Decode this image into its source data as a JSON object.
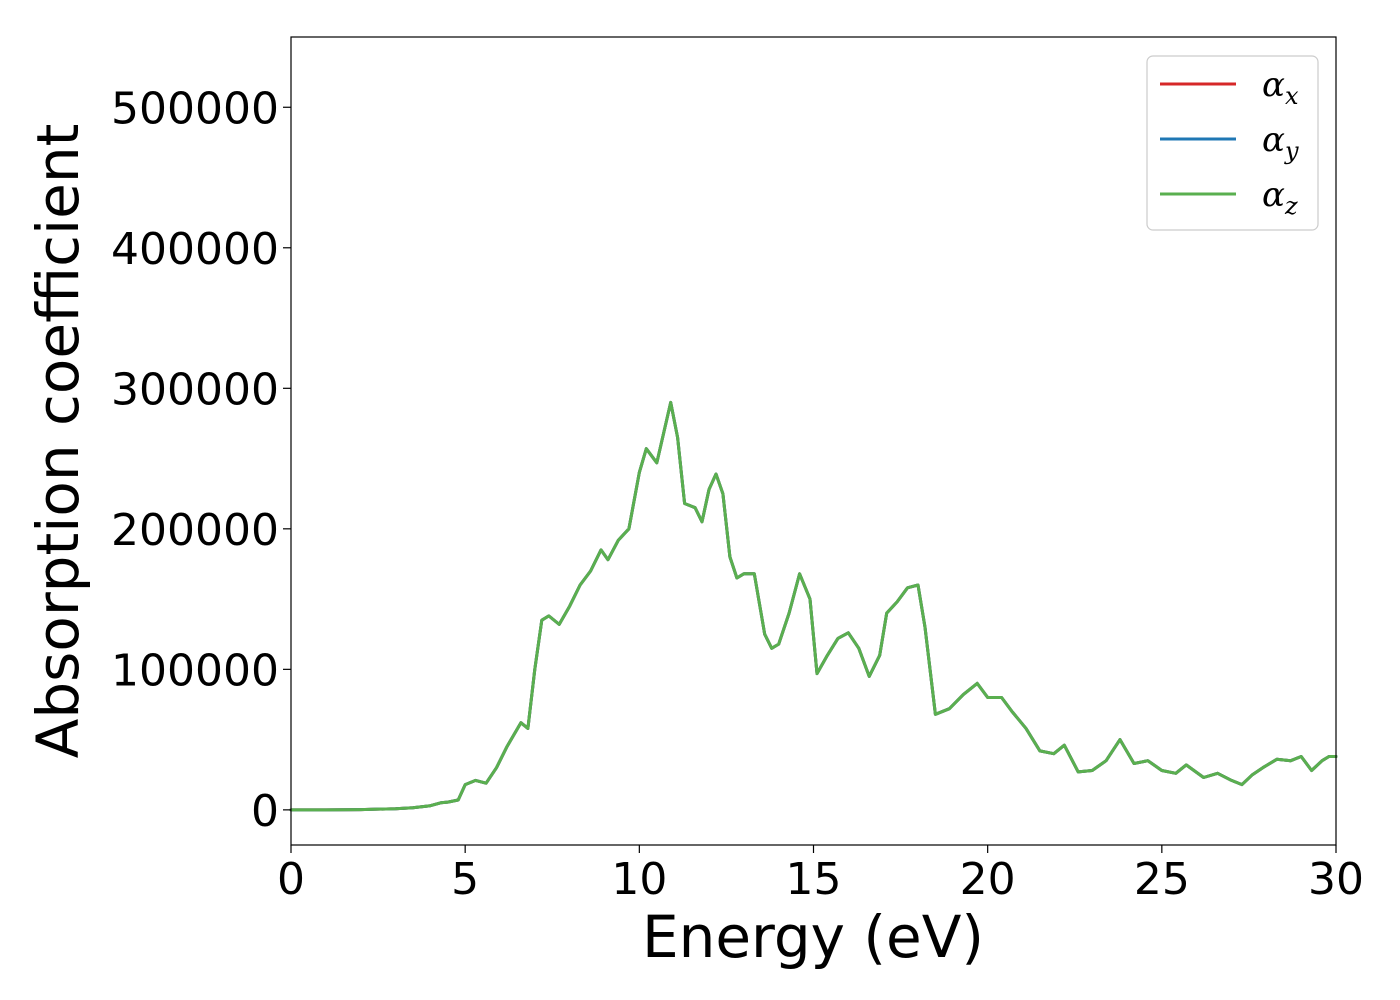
{
  "chart_data": {
    "type": "line",
    "xlabel": "Energy (eV)",
    "ylabel": "Absorption coefficient",
    "xlim": [
      0,
      30
    ],
    "ylim": [
      -25000,
      550000
    ],
    "xticks": [
      "0",
      "5",
      "10",
      "15",
      "20",
      "25",
      "30"
    ],
    "yticks": [
      "0",
      "100000",
      "200000",
      "300000",
      "400000",
      "500000"
    ],
    "grid": false,
    "legend_position": "top-right",
    "series": [
      {
        "name": "α_x",
        "legend_base": "α",
        "legend_sub": "x",
        "color": "#d62728",
        "x": [
          0,
          1,
          2,
          3,
          3.5,
          4,
          4.3,
          4.5,
          4.8,
          5.0,
          5.3,
          5.6,
          5.9,
          6.2,
          6.6,
          6.8,
          7.0,
          7.2,
          7.4,
          7.7,
          8.0,
          8.3,
          8.6,
          8.9,
          9.1,
          9.4,
          9.7,
          10.0,
          10.2,
          10.5,
          10.9,
          11.1,
          11.3,
          11.6,
          11.8,
          12.0,
          12.2,
          12.4,
          12.6,
          12.8,
          13.0,
          13.3,
          13.6,
          13.8,
          14.0,
          14.3,
          14.6,
          14.9,
          15.1,
          15.4,
          15.7,
          16.0,
          16.3,
          16.6,
          16.9,
          17.1,
          17.4,
          17.7,
          18.0,
          18.2,
          18.5,
          18.9,
          19.3,
          19.7,
          20.0,
          20.4,
          20.7,
          21.1,
          21.5,
          21.9,
          22.2,
          22.6,
          23.0,
          23.4,
          23.8,
          24.2,
          24.6,
          25.0,
          25.4,
          25.7,
          26.2,
          26.6,
          27.0,
          27.3,
          27.6,
          27.9,
          28.3,
          28.7,
          29.0,
          29.3,
          29.6,
          29.8,
          30.0
        ],
        "y": [
          0,
          0,
          200,
          800,
          1500,
          3000,
          5000,
          5500,
          7000,
          18000,
          21000,
          19000,
          30000,
          45000,
          62000,
          58000,
          100000,
          135000,
          138000,
          132000,
          145000,
          160000,
          170000,
          185000,
          178000,
          192000,
          200000,
          240000,
          257000,
          247000,
          290000,
          265000,
          218000,
          215000,
          205000,
          228000,
          239000,
          225000,
          180000,
          165000,
          168000,
          168000,
          125000,
          115000,
          118000,
          140000,
          168000,
          150000,
          97000,
          110000,
          122000,
          126000,
          115000,
          95000,
          110000,
          140000,
          148000,
          158000,
          160000,
          130000,
          68000,
          72000,
          82000,
          90000,
          80000,
          80000,
          70000,
          58000,
          42000,
          40000,
          46000,
          27000,
          28000,
          35000,
          50000,
          33000,
          35000,
          28000,
          26000,
          32000,
          23000,
          26000,
          21000,
          18000,
          25000,
          30000,
          36000,
          35000,
          38000,
          28000,
          35000,
          38000,
          38000
        ]
      },
      {
        "name": "α_y",
        "legend_base": "α",
        "legend_sub": "y",
        "color": "#1f77b4",
        "x": [
          0,
          1,
          2,
          3,
          3.5,
          4,
          4.3,
          4.5,
          4.8,
          5.0,
          5.3,
          5.6,
          5.9,
          6.2,
          6.6,
          6.8,
          7.0,
          7.2,
          7.4,
          7.7,
          8.0,
          8.3,
          8.6,
          8.9,
          9.1,
          9.4,
          9.7,
          10.0,
          10.2,
          10.5,
          10.9,
          11.1,
          11.3,
          11.6,
          11.8,
          12.0,
          12.2,
          12.4,
          12.6,
          12.8,
          13.0,
          13.3,
          13.6,
          13.8,
          14.0,
          14.3,
          14.6,
          14.9,
          15.1,
          15.4,
          15.7,
          16.0,
          16.3,
          16.6,
          16.9,
          17.1,
          17.4,
          17.7,
          18.0,
          18.2,
          18.5,
          18.9,
          19.3,
          19.7,
          20.0,
          20.4,
          20.7,
          21.1,
          21.5,
          21.9,
          22.2,
          22.6,
          23.0,
          23.4,
          23.8,
          24.2,
          24.6,
          25.0,
          25.4,
          25.7,
          26.2,
          26.6,
          27.0,
          27.3,
          27.6,
          27.9,
          28.3,
          28.7,
          29.0,
          29.3,
          29.6,
          29.8,
          30.0
        ],
        "y": [
          0,
          0,
          200,
          800,
          1500,
          3000,
          5000,
          5500,
          7000,
          18000,
          21000,
          19000,
          30000,
          45000,
          62000,
          58000,
          100000,
          135000,
          138000,
          132000,
          145000,
          160000,
          170000,
          185000,
          178000,
          192000,
          200000,
          240000,
          257000,
          247000,
          290000,
          265000,
          218000,
          215000,
          205000,
          228000,
          239000,
          225000,
          180000,
          165000,
          168000,
          168000,
          125000,
          115000,
          118000,
          140000,
          168000,
          150000,
          97000,
          110000,
          122000,
          126000,
          115000,
          95000,
          110000,
          140000,
          148000,
          158000,
          160000,
          130000,
          68000,
          72000,
          82000,
          90000,
          80000,
          80000,
          70000,
          58000,
          42000,
          40000,
          46000,
          27000,
          28000,
          35000,
          50000,
          33000,
          35000,
          28000,
          26000,
          32000,
          23000,
          26000,
          21000,
          18000,
          25000,
          30000,
          36000,
          35000,
          38000,
          28000,
          35000,
          38000,
          38000
        ]
      },
      {
        "name": "α_z",
        "legend_base": "α",
        "legend_sub": "z",
        "color": "#5aaf4f",
        "x": [
          0,
          1,
          2,
          3,
          3.5,
          4,
          4.3,
          4.5,
          4.8,
          5.0,
          5.3,
          5.6,
          5.9,
          6.2,
          6.6,
          6.8,
          7.0,
          7.2,
          7.4,
          7.7,
          8.0,
          8.3,
          8.6,
          8.9,
          9.1,
          9.4,
          9.7,
          10.0,
          10.2,
          10.5,
          10.9,
          11.1,
          11.3,
          11.6,
          11.8,
          12.0,
          12.2,
          12.4,
          12.6,
          12.8,
          13.0,
          13.3,
          13.6,
          13.8,
          14.0,
          14.3,
          14.6,
          14.9,
          15.1,
          15.4,
          15.7,
          16.0,
          16.3,
          16.6,
          16.9,
          17.1,
          17.4,
          17.7,
          18.0,
          18.2,
          18.5,
          18.9,
          19.3,
          19.7,
          20.0,
          20.4,
          20.7,
          21.1,
          21.5,
          21.9,
          22.2,
          22.6,
          23.0,
          23.4,
          23.8,
          24.2,
          24.6,
          25.0,
          25.4,
          25.7,
          26.2,
          26.6,
          27.0,
          27.3,
          27.6,
          27.9,
          28.3,
          28.7,
          29.0,
          29.3,
          29.6,
          29.8,
          30.0
        ],
        "y": [
          0,
          0,
          200,
          800,
          1500,
          3000,
          5000,
          5500,
          7000,
          18000,
          21000,
          19000,
          30000,
          45000,
          62000,
          58000,
          100000,
          135000,
          138000,
          132000,
          145000,
          160000,
          170000,
          185000,
          178000,
          192000,
          200000,
          240000,
          257000,
          247000,
          290000,
          265000,
          218000,
          215000,
          205000,
          228000,
          239000,
          225000,
          180000,
          165000,
          168000,
          168000,
          125000,
          115000,
          118000,
          140000,
          168000,
          150000,
          97000,
          110000,
          122000,
          126000,
          115000,
          95000,
          110000,
          140000,
          148000,
          158000,
          160000,
          130000,
          68000,
          72000,
          82000,
          90000,
          80000,
          80000,
          70000,
          58000,
          42000,
          40000,
          46000,
          27000,
          28000,
          35000,
          50000,
          33000,
          35000,
          28000,
          26000,
          32000,
          23000,
          26000,
          21000,
          18000,
          25000,
          30000,
          36000,
          35000,
          38000,
          28000,
          35000,
          38000,
          38000
        ]
      }
    ]
  }
}
